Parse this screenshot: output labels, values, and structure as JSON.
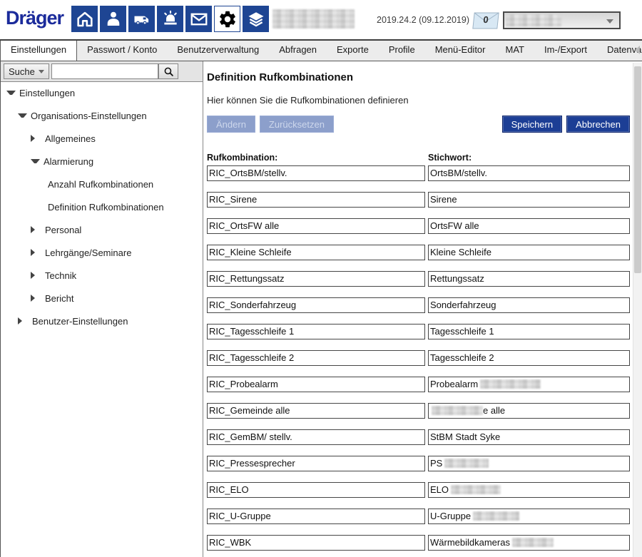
{
  "header": {
    "logo": "Dräger",
    "version": "2019.24.2 (09.12.2019)",
    "mail_badge": "0",
    "toolbar": [
      {
        "icon": "home"
      },
      {
        "icon": "person"
      },
      {
        "icon": "vehicle"
      },
      {
        "icon": "siren"
      },
      {
        "icon": "mail"
      },
      {
        "icon": "settings",
        "active": true
      },
      {
        "icon": "layers"
      }
    ]
  },
  "tabs": [
    {
      "label": "Einstellungen",
      "active": true
    },
    {
      "label": "Passwort / Konto"
    },
    {
      "label": "Benutzerverwaltung"
    },
    {
      "label": "Abfragen"
    },
    {
      "label": "Exporte"
    },
    {
      "label": "Profile"
    },
    {
      "label": "Menü-Editor"
    },
    {
      "label": "MAT"
    },
    {
      "label": "Im-/Export"
    },
    {
      "label": "Datenva"
    }
  ],
  "sidebar": {
    "search": {
      "filter_label": "Suche",
      "input_value": ""
    },
    "tree": [
      {
        "label": "Einstellungen",
        "level": 0,
        "state": "expanded"
      },
      {
        "label": "Organisations-Einstellungen",
        "level": 1,
        "state": "expanded"
      },
      {
        "label": "Allgemeines",
        "level": 2,
        "state": "collapsed"
      },
      {
        "label": "Alarmierung",
        "level": 2,
        "state": "expanded"
      },
      {
        "label": "Anzahl Rufkombinationen",
        "level": 3,
        "state": "leaf"
      },
      {
        "label": "Definition Rufkombinationen",
        "level": 3,
        "state": "leaf"
      },
      {
        "label": "Personal",
        "level": 2,
        "state": "collapsed"
      },
      {
        "label": "Lehrgänge/Seminare",
        "level": 2,
        "state": "collapsed"
      },
      {
        "label": "Technik",
        "level": 2,
        "state": "collapsed"
      },
      {
        "label": "Bericht",
        "level": 2,
        "state": "collapsed"
      },
      {
        "label": "Benutzer-Einstellungen",
        "level": 1,
        "state": "collapsed"
      }
    ]
  },
  "main": {
    "title": "Definition Rufkombinationen",
    "subtitle": "Hier können Sie die Rufkombinationen definieren",
    "buttons": {
      "aendern": "Ändern",
      "zuruecksetzen": "Zurücksetzen",
      "speichern": "Speichern",
      "abbrechen": "Abbrechen"
    },
    "columns": {
      "ruf": "Rufkombination:",
      "stich": "Stichwort:"
    },
    "rows": [
      {
        "ruf": "RIC_OrtsBM/stellv.",
        "stich_pre": "OrtsBM/stellv.",
        "redact": 0,
        "stich_post": ""
      },
      {
        "ruf": "RIC_Sirene",
        "stich_pre": "Sirene",
        "redact": 0,
        "stich_post": ""
      },
      {
        "ruf": "RIC_OrtsFW alle",
        "stich_pre": "OrtsFW alle",
        "redact": 0,
        "stich_post": ""
      },
      {
        "ruf": "RIC_Kleine Schleife",
        "stich_pre": "Kleine Schleife",
        "redact": 0,
        "stich_post": ""
      },
      {
        "ruf": "RIC_Rettungssatz",
        "stich_pre": "Rettungssatz",
        "redact": 0,
        "stich_post": ""
      },
      {
        "ruf": "RIC_Sonderfahrzeug",
        "stich_pre": "Sonderfahrzeug",
        "redact": 0,
        "stich_post": ""
      },
      {
        "ruf": "RIC_Tagesschleife 1",
        "stich_pre": "Tagesschleife 1",
        "redact": 0,
        "stich_post": ""
      },
      {
        "ruf": "RIC_Tagesschleife 2",
        "stich_pre": "Tagesschleife 2",
        "redact": 0,
        "stich_post": ""
      },
      {
        "ruf": "RIC_Probealarm",
        "stich_pre": "Probealarm",
        "redact": 85,
        "stich_post": ""
      },
      {
        "ruf": "RIC_Gemeinde alle",
        "stich_pre": "",
        "redact": 72,
        "stich_post": "e alle"
      },
      {
        "ruf": "RIC_GemBM/ stellv.",
        "stich_pre": "StBM Stadt Syke",
        "redact": 0,
        "stich_post": ""
      },
      {
        "ruf": "RIC_Pressesprecher",
        "stich_pre": "PS",
        "redact": 62,
        "stich_post": ""
      },
      {
        "ruf": "RIC_ELO",
        "stich_pre": "ELO",
        "redact": 70,
        "stich_post": ""
      },
      {
        "ruf": "RIC_U-Gruppe",
        "stich_pre": "U-Gruppe",
        "redact": 65,
        "stich_post": ""
      },
      {
        "ruf": "RIC_WBK",
        "stich_pre": "Wärmebildkameras",
        "redact": 58,
        "stich_post": ""
      }
    ]
  },
  "colors": {
    "toolbar_blue": "#1E4593",
    "logo_blue": "#1B2B9B",
    "button_blue": "#1C3E95",
    "disabled_button": "#8C9FCB"
  }
}
